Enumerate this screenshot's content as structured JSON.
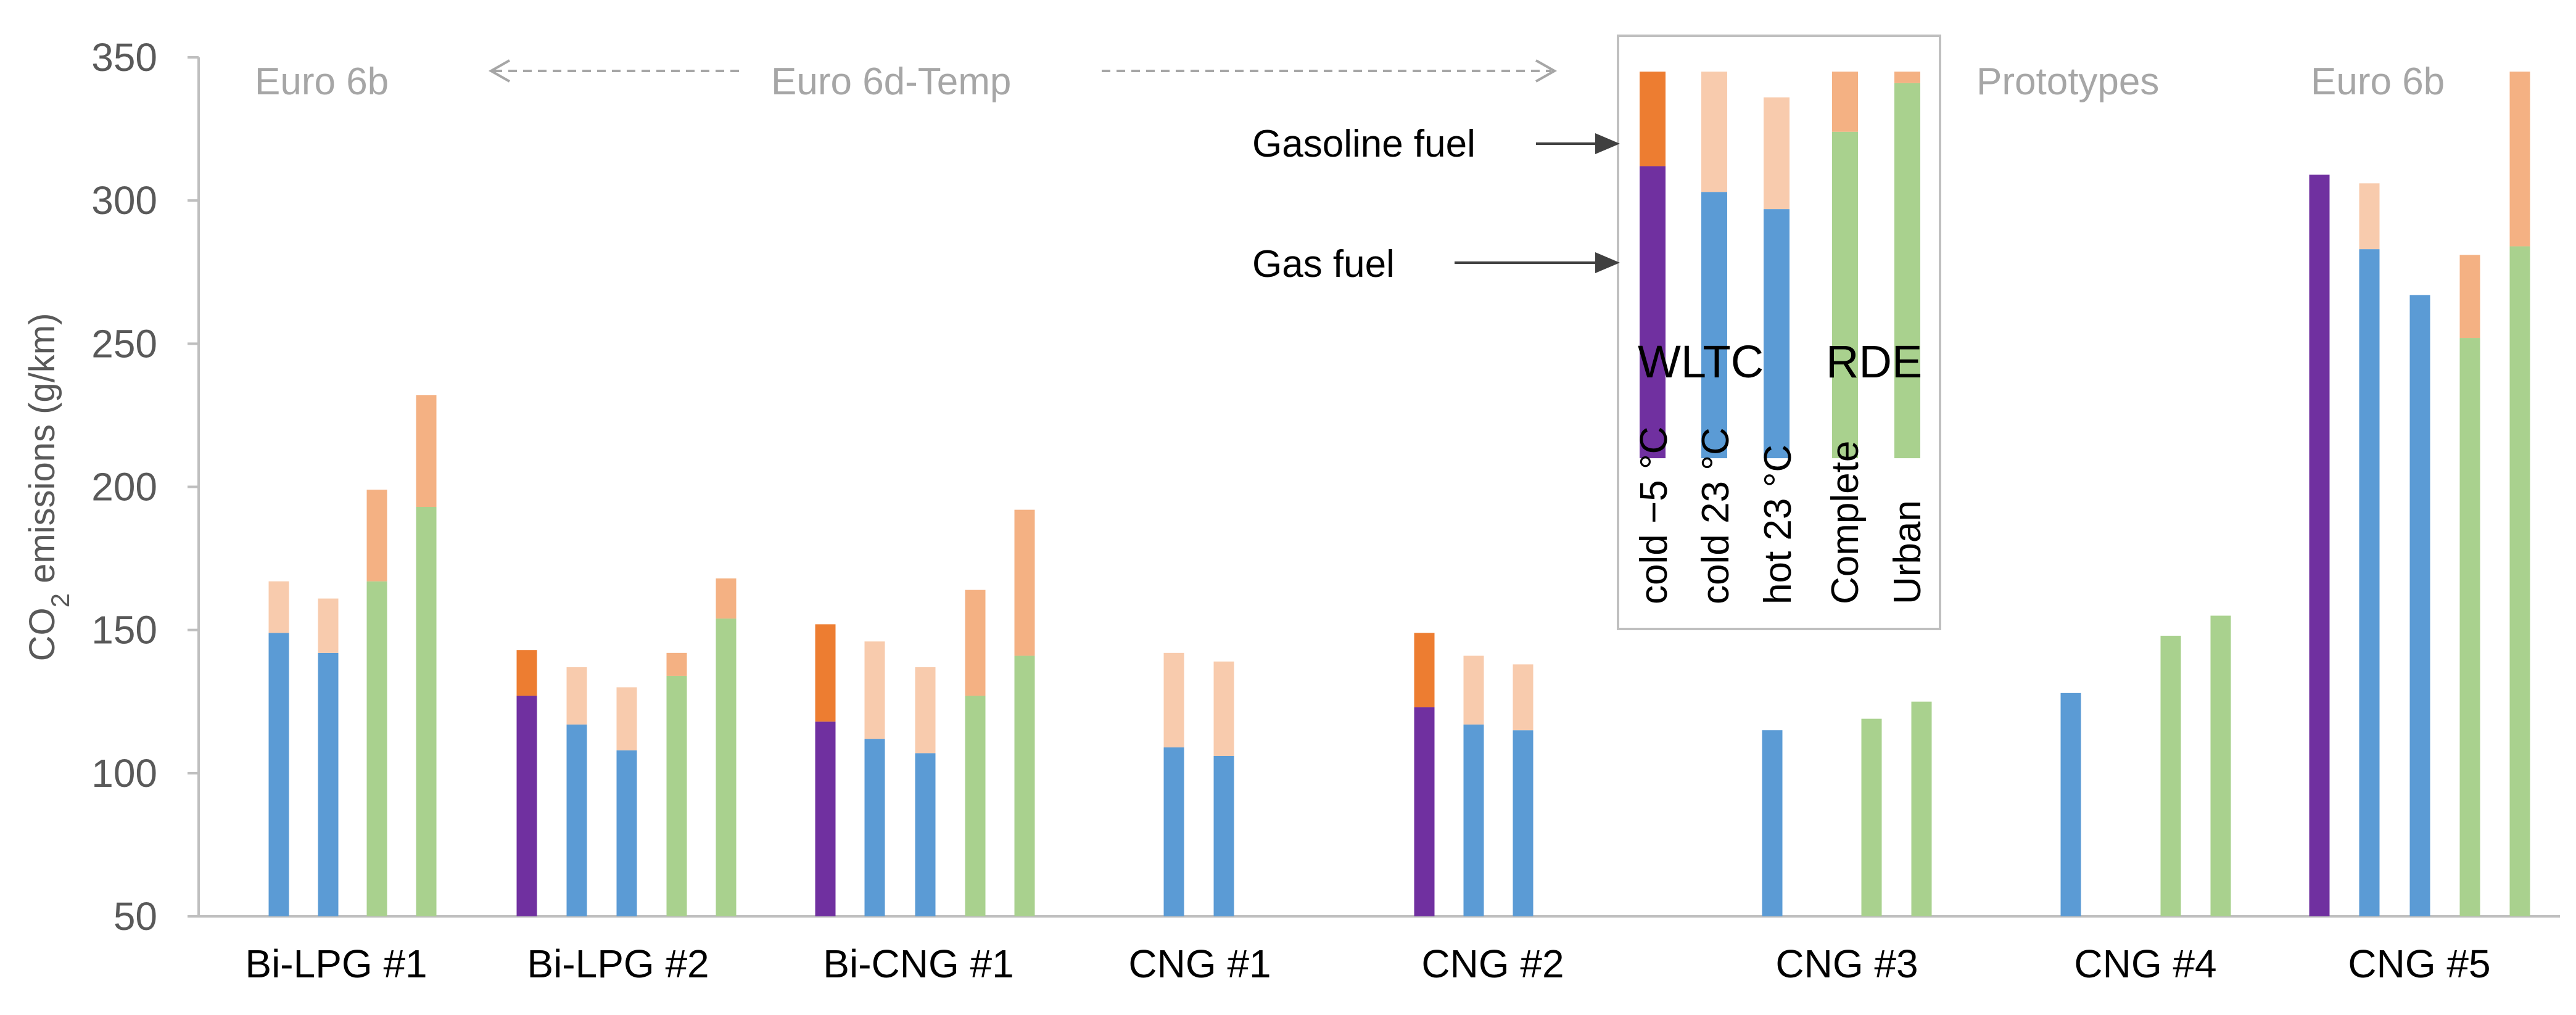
{
  "chart_data": {
    "type": "bar",
    "title": "",
    "ylabel": "CO2 emissions (g/km)",
    "ylabel_main": "CO",
    "ylabel_sub": "2",
    "ylabel_rest": " emissions (g/km)",
    "ylim": [
      50,
      350
    ],
    "yticks": [
      50,
      100,
      150,
      200,
      250,
      300,
      350
    ],
    "grid": false,
    "categories": [
      "Bi-LPG #1",
      "Bi-LPG #2",
      "Bi-CNG #1",
      "CNG #1",
      "CNG #2",
      "CNG #3",
      "CNG #4",
      "CNG #5"
    ],
    "series_names": [
      "WLTC cold −5 °C",
      "WLTC cold 23 °C",
      "WLTC hot 23 °C",
      "RDE Complete",
      "RDE Urban"
    ],
    "groups": [
      {
        "category": "Bi-LPG #1",
        "bars": [
          {
            "series": "WLTC cold 23 °C",
            "gas": 149,
            "total": 167
          },
          {
            "series": "WLTC hot 23 °C",
            "gas": 142,
            "total": 161
          },
          {
            "series": "RDE Complete",
            "gas": 167,
            "total": 199
          },
          {
            "series": "RDE Urban",
            "gas": 193,
            "total": 232
          }
        ]
      },
      {
        "category": "Bi-LPG #2",
        "bars": [
          {
            "series": "WLTC cold −5 °C",
            "gas": 127,
            "total": 143
          },
          {
            "series": "WLTC cold 23 °C",
            "gas": 117,
            "total": 137
          },
          {
            "series": "WLTC hot 23 °C",
            "gas": 108,
            "total": 130
          },
          {
            "series": "RDE Complete",
            "gas": 134,
            "total": 142
          },
          {
            "series": "RDE Urban",
            "gas": 154,
            "total": 168
          }
        ]
      },
      {
        "category": "Bi-CNG #1",
        "bars": [
          {
            "series": "WLTC cold −5 °C",
            "gas": 118,
            "total": 152
          },
          {
            "series": "WLTC cold 23 °C",
            "gas": 112,
            "total": 146
          },
          {
            "series": "WLTC hot 23 °C",
            "gas": 107,
            "total": 137
          },
          {
            "series": "RDE Complete",
            "gas": 127,
            "total": 164
          },
          {
            "series": "RDE Urban",
            "gas": 141,
            "total": 192
          }
        ]
      },
      {
        "category": "CNG #1",
        "bars": [
          {
            "series": "WLTC cold 23 °C",
            "gas": 109,
            "total": 142
          },
          {
            "series": "WLTC hot 23 °C",
            "gas": 106,
            "total": 139
          }
        ]
      },
      {
        "category": "CNG #2",
        "bars": [
          {
            "series": "WLTC cold −5 °C",
            "gas": 123,
            "total": 149
          },
          {
            "series": "WLTC cold 23 °C",
            "gas": 117,
            "total": 141
          },
          {
            "series": "WLTC hot 23 °C",
            "gas": 115,
            "total": 138
          }
        ]
      },
      {
        "category": "CNG #3",
        "bars": [
          {
            "series": "WLTC cold 23 °C",
            "gas": 115,
            "total": 115
          },
          {
            "series": "RDE Complete",
            "gas": 119,
            "total": 119
          },
          {
            "series": "RDE Urban",
            "gas": 125,
            "total": 125
          }
        ]
      },
      {
        "category": "CNG #4",
        "bars": [
          {
            "series": "WLTC cold 23 °C",
            "gas": 128,
            "total": 128
          },
          {
            "series": "RDE Complete",
            "gas": 148,
            "total": 148
          },
          {
            "series": "RDE Urban",
            "gas": 155,
            "total": 155
          }
        ]
      },
      {
        "category": "CNG #5",
        "bars": [
          {
            "series": "WLTC cold −5 °C",
            "gas": 309,
            "total": 309
          },
          {
            "series": "WLTC cold 23 °C",
            "gas": 283,
            "total": 306
          },
          {
            "series": "WLTC hot 23 °C",
            "gas": 267,
            "total": 267
          },
          {
            "series": "RDE Complete",
            "gas": 252,
            "total": 281
          },
          {
            "series": "RDE Urban",
            "gas": 284,
            "total": 345
          }
        ]
      }
    ],
    "colors": {
      "WLTC cold −5 °C": {
        "gas": "#7030a0",
        "gasoline": "#ed7d31"
      },
      "WLTC cold 23 °C": {
        "gas": "#5b9bd5",
        "gasoline": "#f8cbad"
      },
      "WLTC hot 23 °C": {
        "gas": "#5b9bd5",
        "gasoline": "#f8cbad"
      },
      "RDE Complete": {
        "gas": "#a9d18e",
        "gasoline": "#f4b183"
      },
      "RDE Urban": {
        "gas": "#a9d18e",
        "gasoline": "#f4b183"
      }
    },
    "regions": [
      "Euro 6b",
      "Euro 6d-Temp",
      "Prototypes",
      "Euro 6b"
    ],
    "legend": {
      "placement": "top-right",
      "gasoline_label": "Gasoline fuel",
      "gas_label": "Gas fuel",
      "wltc_label": "WLTC",
      "rde_label": "RDE",
      "column_labels": [
        "cold −5 °C",
        "cold 23 °C",
        "hot 23 °C",
        "Complete",
        "Urban"
      ],
      "sample_bars": [
        {
          "gas": 312,
          "total": 345
        },
        {
          "gas": 303,
          "total": 345
        },
        {
          "gas": 297,
          "total": 336
        },
        {
          "gas": 324,
          "total": 345
        },
        {
          "gas": 341,
          "total": 345
        }
      ]
    }
  }
}
